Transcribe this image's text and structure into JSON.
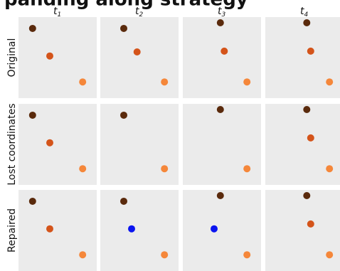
{
  "figure": {
    "cut_title_text": "panding along strategy",
    "columns": [
      {
        "base": "t",
        "sub": "1"
      },
      {
        "base": "t",
        "sub": "2"
      },
      {
        "base": "t",
        "sub": "3"
      },
      {
        "base": "t",
        "sub": "4"
      }
    ],
    "rows": [
      {
        "label": "Original",
        "panels": [
          {
            "points": [
              {
                "x": 0.18,
                "y": 0.86,
                "c": "dark"
              },
              {
                "x": 0.4,
                "y": 0.52,
                "c": "mid"
              },
              {
                "x": 0.82,
                "y": 0.2,
                "c": "light"
              }
            ]
          },
          {
            "points": [
              {
                "x": 0.3,
                "y": 0.86,
                "c": "dark"
              },
              {
                "x": 0.47,
                "y": 0.57,
                "c": "mid"
              },
              {
                "x": 0.82,
                "y": 0.2,
                "c": "light"
              }
            ]
          },
          {
            "points": [
              {
                "x": 0.48,
                "y": 0.93,
                "c": "dark"
              },
              {
                "x": 0.53,
                "y": 0.58,
                "c": "mid"
              },
              {
                "x": 0.82,
                "y": 0.2,
                "c": "light"
              }
            ]
          },
          {
            "points": [
              {
                "x": 0.53,
                "y": 0.93,
                "c": "dark"
              },
              {
                "x": 0.58,
                "y": 0.58,
                "c": "mid"
              },
              {
                "x": 0.82,
                "y": 0.2,
                "c": "light"
              }
            ]
          }
        ]
      },
      {
        "label": "Lost coordinates",
        "panels": [
          {
            "points": [
              {
                "x": 0.18,
                "y": 0.86,
                "c": "dark"
              },
              {
                "x": 0.4,
                "y": 0.52,
                "c": "mid"
              },
              {
                "x": 0.82,
                "y": 0.2,
                "c": "light"
              }
            ]
          },
          {
            "points": [
              {
                "x": 0.3,
                "y": 0.86,
                "c": "dark"
              },
              {
                "x": 0.82,
                "y": 0.2,
                "c": "light"
              }
            ]
          },
          {
            "points": [
              {
                "x": 0.48,
                "y": 0.93,
                "c": "dark"
              },
              {
                "x": 0.82,
                "y": 0.2,
                "c": "light"
              }
            ]
          },
          {
            "points": [
              {
                "x": 0.53,
                "y": 0.93,
                "c": "dark"
              },
              {
                "x": 0.58,
                "y": 0.58,
                "c": "mid"
              },
              {
                "x": 0.82,
                "y": 0.2,
                "c": "light"
              }
            ]
          }
        ]
      },
      {
        "label": "Repaired",
        "panels": [
          {
            "points": [
              {
                "x": 0.18,
                "y": 0.86,
                "c": "dark"
              },
              {
                "x": 0.4,
                "y": 0.52,
                "c": "mid"
              },
              {
                "x": 0.82,
                "y": 0.2,
                "c": "light"
              }
            ]
          },
          {
            "points": [
              {
                "x": 0.3,
                "y": 0.86,
                "c": "dark"
              },
              {
                "x": 0.4,
                "y": 0.52,
                "c": "blue"
              },
              {
                "x": 0.82,
                "y": 0.2,
                "c": "light"
              }
            ]
          },
          {
            "points": [
              {
                "x": 0.48,
                "y": 0.93,
                "c": "dark"
              },
              {
                "x": 0.4,
                "y": 0.52,
                "c": "blue"
              },
              {
                "x": 0.82,
                "y": 0.2,
                "c": "light"
              }
            ]
          },
          {
            "points": [
              {
                "x": 0.53,
                "y": 0.93,
                "c": "dark"
              },
              {
                "x": 0.58,
                "y": 0.58,
                "c": "mid"
              },
              {
                "x": 0.82,
                "y": 0.2,
                "c": "light"
              }
            ]
          }
        ]
      }
    ],
    "colors": {
      "dark": "#5a2a0c",
      "mid": "#d4541a",
      "light": "#f5873a",
      "blue": "#0a14f0",
      "panel_bg": "#ebebeb"
    }
  }
}
